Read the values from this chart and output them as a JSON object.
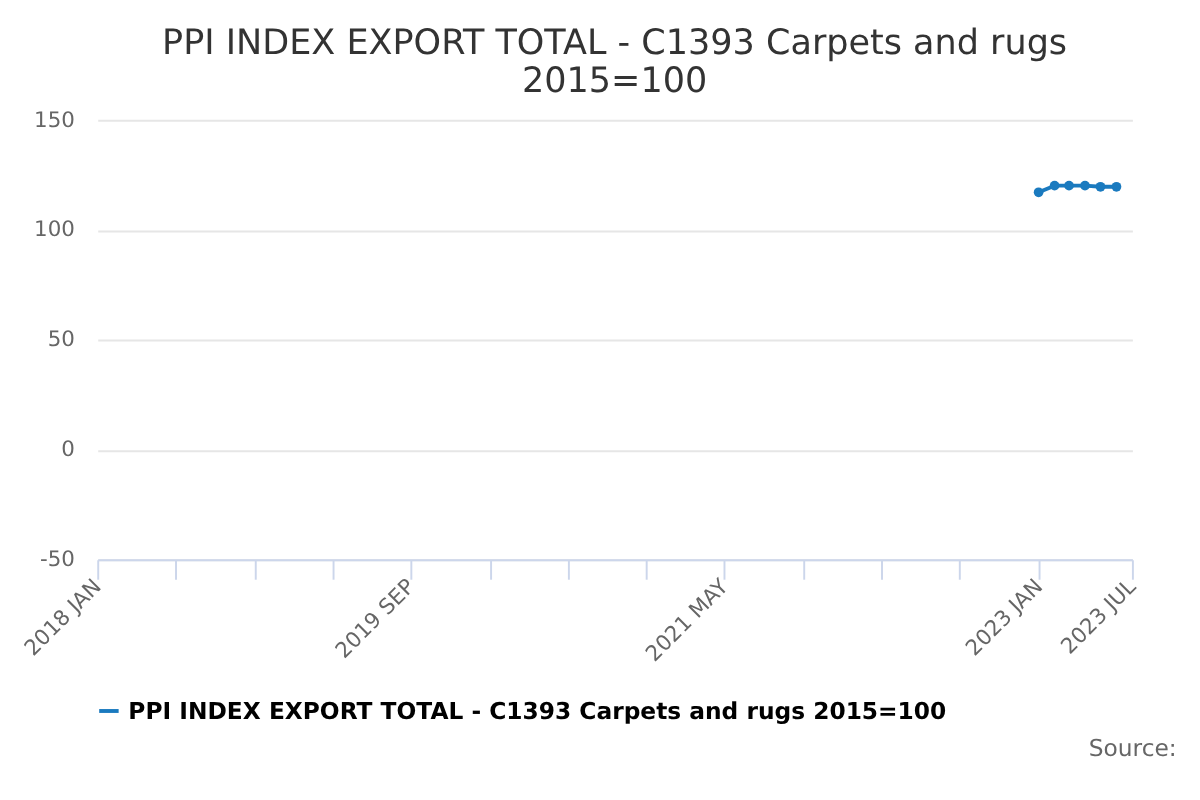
{
  "chart_data": {
    "type": "line",
    "title": "PPI INDEX EXPORT TOTAL - C1393 Carpets and rugs\n2015=100",
    "x": [
      "2023-01",
      "2023-02",
      "2023-03",
      "2023-04",
      "2023-05",
      "2023-06"
    ],
    "series": [
      {
        "name": "PPI INDEX EXPORT TOTAL - C1393 Carpets and rugs 2015=100",
        "color": "#1a7abf",
        "values": [
          117,
          120,
          120,
          120,
          119.5,
          119.5
        ]
      }
    ],
    "xlim": [
      "2018-01",
      "2023-07"
    ],
    "xticks": [
      {
        "value": "2018-01",
        "label": "2018 JAN"
      },
      {
        "value": "2018-06",
        "label": null
      },
      {
        "value": "2018-11",
        "label": null
      },
      {
        "value": "2019-04",
        "label": null
      },
      {
        "value": "2019-09",
        "label": "2019 SEP"
      },
      {
        "value": "2020-02",
        "label": null
      },
      {
        "value": "2020-07",
        "label": null
      },
      {
        "value": "2020-12",
        "label": null
      },
      {
        "value": "2021-05",
        "label": "2021 MAY"
      },
      {
        "value": "2021-10",
        "label": null
      },
      {
        "value": "2022-03",
        "label": null
      },
      {
        "value": "2022-08",
        "label": null
      },
      {
        "value": "2023-01",
        "label": "2023 JAN"
      },
      {
        "value": "2023-07",
        "label": "2023 JUL"
      }
    ],
    "ylim": [
      -50,
      150
    ],
    "yticks": [
      -50,
      0,
      50,
      100,
      150
    ],
    "grid": "y",
    "legend": "bottom",
    "marker": "circle",
    "line_style": "solid",
    "annotations": [
      "Source:"
    ]
  }
}
